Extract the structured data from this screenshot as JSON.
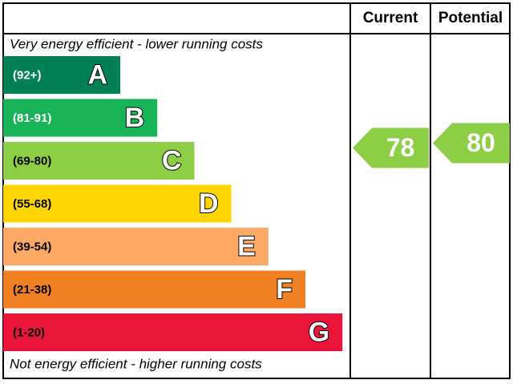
{
  "chart_data": {
    "type": "epc",
    "headers": [
      "Current",
      "Potential"
    ],
    "top_note": "Very energy efficient - lower running costs",
    "bottom_note": "Not energy efficient - higher running costs",
    "bands": [
      {
        "range": "(92+)",
        "letter": "A",
        "color": "#008054"
      },
      {
        "range": "(81-91)",
        "letter": "B",
        "color": "#19b459"
      },
      {
        "range": "(69-80)",
        "letter": "C",
        "color": "#8dce46"
      },
      {
        "range": "(55-68)",
        "letter": "D",
        "color": "#ffd500"
      },
      {
        "range": "(39-54)",
        "letter": "E",
        "color": "#fcaa65"
      },
      {
        "range": "(21-38)",
        "letter": "F",
        "color": "#ef8023"
      },
      {
        "range": "(1-20)",
        "letter": "G",
        "color": "#e9153b"
      }
    ],
    "ratings": [
      78,
      80
    ]
  }
}
